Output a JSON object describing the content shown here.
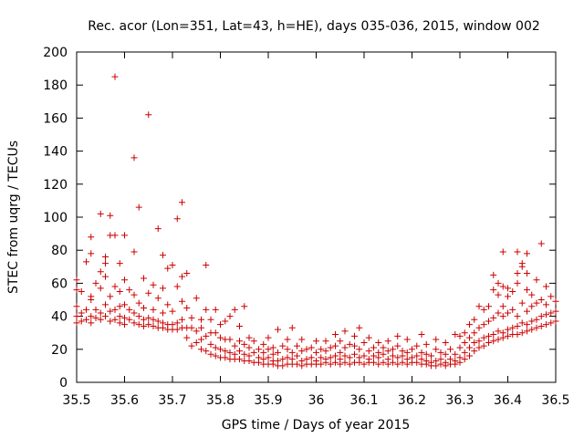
{
  "chart_data": {
    "type": "scatter",
    "title": "Rec. acor (Lon=351, Lat=43, h=HE), days 035-036, 2015, window 002",
    "xlabel": "GPS time / Days of year 2015",
    "ylabel": "STEC from uqrg / TECUs",
    "xlim": [
      35.5,
      36.5
    ],
    "ylim": [
      0,
      200
    ],
    "xticks": [
      "35.5",
      "35.6",
      "35.7",
      "35.8",
      "35.9",
      "36",
      "36.1",
      "36.2",
      "36.3",
      "36.4",
      "36.5"
    ],
    "yticks": [
      "0",
      "20",
      "40",
      "60",
      "80",
      "100",
      "120",
      "140",
      "160",
      "180",
      "200"
    ],
    "marker": "+",
    "color": "#cc0000",
    "grid": false,
    "points": [
      [
        35.5,
        36
      ],
      [
        35.5,
        40
      ],
      [
        35.5,
        46
      ],
      [
        35.5,
        56
      ],
      [
        35.5,
        62
      ],
      [
        35.51,
        37
      ],
      [
        35.51,
        42
      ],
      [
        35.51,
        55
      ],
      [
        35.52,
        38
      ],
      [
        35.52,
        44
      ],
      [
        35.52,
        73
      ],
      [
        35.53,
        36
      ],
      [
        35.53,
        40
      ],
      [
        35.53,
        50
      ],
      [
        35.53,
        52
      ],
      [
        35.53,
        78
      ],
      [
        35.53,
        88
      ],
      [
        35.54,
        39
      ],
      [
        35.54,
        44
      ],
      [
        35.54,
        60
      ],
      [
        35.55,
        38
      ],
      [
        35.55,
        42
      ],
      [
        35.55,
        57
      ],
      [
        35.55,
        67
      ],
      [
        35.55,
        102
      ],
      [
        35.56,
        40
      ],
      [
        35.56,
        47
      ],
      [
        35.56,
        64
      ],
      [
        35.56,
        72
      ],
      [
        35.56,
        76
      ],
      [
        35.57,
        37
      ],
      [
        35.57,
        43
      ],
      [
        35.57,
        52
      ],
      [
        35.57,
        89
      ],
      [
        35.57,
        101
      ],
      [
        35.58,
        38
      ],
      [
        35.58,
        44
      ],
      [
        35.58,
        58
      ],
      [
        35.58,
        89
      ],
      [
        35.58,
        185
      ],
      [
        35.59,
        36
      ],
      [
        35.59,
        40
      ],
      [
        35.59,
        46
      ],
      [
        35.59,
        55
      ],
      [
        35.59,
        72
      ],
      [
        35.6,
        35
      ],
      [
        35.6,
        39
      ],
      [
        35.6,
        47
      ],
      [
        35.6,
        62
      ],
      [
        35.6,
        89
      ],
      [
        35.61,
        38
      ],
      [
        35.61,
        44
      ],
      [
        35.61,
        56
      ],
      [
        35.62,
        36
      ],
      [
        35.62,
        42
      ],
      [
        35.62,
        53
      ],
      [
        35.62,
        79
      ],
      [
        35.62,
        136
      ],
      [
        35.63,
        35
      ],
      [
        35.63,
        40
      ],
      [
        35.63,
        48
      ],
      [
        35.63,
        106
      ],
      [
        35.64,
        34
      ],
      [
        35.64,
        38
      ],
      [
        35.64,
        45
      ],
      [
        35.64,
        63
      ],
      [
        35.65,
        35
      ],
      [
        35.65,
        39
      ],
      [
        35.65,
        54
      ],
      [
        35.65,
        162
      ],
      [
        35.66,
        34
      ],
      [
        35.66,
        38
      ],
      [
        35.66,
        44
      ],
      [
        35.66,
        59
      ],
      [
        35.67,
        33
      ],
      [
        35.67,
        37
      ],
      [
        35.67,
        51
      ],
      [
        35.67,
        93
      ],
      [
        35.68,
        33
      ],
      [
        35.68,
        36
      ],
      [
        35.68,
        42
      ],
      [
        35.68,
        57
      ],
      [
        35.68,
        77
      ],
      [
        35.69,
        32
      ],
      [
        35.69,
        35
      ],
      [
        35.69,
        47
      ],
      [
        35.69,
        69
      ],
      [
        35.7,
        32
      ],
      [
        35.7,
        35
      ],
      [
        35.7,
        43
      ],
      [
        35.7,
        71
      ],
      [
        35.71,
        32
      ],
      [
        35.71,
        36
      ],
      [
        35.71,
        58
      ],
      [
        35.71,
        99
      ],
      [
        35.72,
        33
      ],
      [
        35.72,
        38
      ],
      [
        35.72,
        49
      ],
      [
        35.72,
        64
      ],
      [
        35.72,
        109
      ],
      [
        35.73,
        27
      ],
      [
        35.73,
        33
      ],
      [
        35.73,
        45
      ],
      [
        35.73,
        66
      ],
      [
        35.74,
        22
      ],
      [
        35.74,
        33
      ],
      [
        35.74,
        39
      ],
      [
        35.75,
        24
      ],
      [
        35.75,
        31
      ],
      [
        35.75,
        51
      ],
      [
        35.76,
        20
      ],
      [
        35.76,
        26
      ],
      [
        35.76,
        33
      ],
      [
        35.76,
        38
      ],
      [
        35.77,
        19
      ],
      [
        35.77,
        28
      ],
      [
        35.77,
        44
      ],
      [
        35.77,
        71
      ],
      [
        35.78,
        17
      ],
      [
        35.78,
        23
      ],
      [
        35.78,
        30
      ],
      [
        35.78,
        38
      ],
      [
        35.79,
        16
      ],
      [
        35.79,
        21
      ],
      [
        35.79,
        30
      ],
      [
        35.79,
        44
      ],
      [
        35.8,
        15
      ],
      [
        35.8,
        20
      ],
      [
        35.8,
        27
      ],
      [
        35.8,
        35
      ],
      [
        35.81,
        15
      ],
      [
        35.81,
        19
      ],
      [
        35.81,
        26
      ],
      [
        35.81,
        37
      ],
      [
        35.82,
        14
      ],
      [
        35.82,
        18
      ],
      [
        35.82,
        26
      ],
      [
        35.82,
        40
      ],
      [
        35.83,
        14
      ],
      [
        35.83,
        17
      ],
      [
        35.83,
        22
      ],
      [
        35.83,
        44
      ],
      [
        35.84,
        14
      ],
      [
        35.84,
        19
      ],
      [
        35.84,
        25
      ],
      [
        35.84,
        34
      ],
      [
        35.85,
        13
      ],
      [
        35.85,
        17
      ],
      [
        35.85,
        23
      ],
      [
        35.85,
        46
      ],
      [
        35.86,
        13
      ],
      [
        35.86,
        16
      ],
      [
        35.86,
        21
      ],
      [
        35.86,
        27
      ],
      [
        35.87,
        12
      ],
      [
        35.87,
        18
      ],
      [
        35.87,
        25
      ],
      [
        35.88,
        12
      ],
      [
        35.88,
        15
      ],
      [
        35.88,
        20
      ],
      [
        35.89,
        11
      ],
      [
        35.89,
        14
      ],
      [
        35.89,
        18
      ],
      [
        35.89,
        23
      ],
      [
        35.9,
        11
      ],
      [
        35.9,
        15
      ],
      [
        35.9,
        20
      ],
      [
        35.9,
        27
      ],
      [
        35.91,
        11
      ],
      [
        35.91,
        13
      ],
      [
        35.91,
        17
      ],
      [
        35.91,
        21
      ],
      [
        35.92,
        10
      ],
      [
        35.92,
        13
      ],
      [
        35.92,
        18
      ],
      [
        35.92,
        32
      ],
      [
        35.93,
        10
      ],
      [
        35.93,
        14
      ],
      [
        35.93,
        22
      ],
      [
        35.94,
        11
      ],
      [
        35.94,
        15
      ],
      [
        35.94,
        20
      ],
      [
        35.94,
        26
      ],
      [
        35.95,
        11
      ],
      [
        35.95,
        14
      ],
      [
        35.95,
        18
      ],
      [
        35.95,
        33
      ],
      [
        35.96,
        11
      ],
      [
        35.96,
        16
      ],
      [
        35.96,
        22
      ],
      [
        35.97,
        10
      ],
      [
        35.97,
        13
      ],
      [
        35.97,
        19
      ],
      [
        35.97,
        26
      ],
      [
        35.98,
        11
      ],
      [
        35.98,
        14
      ],
      [
        35.98,
        20
      ],
      [
        35.99,
        11
      ],
      [
        35.99,
        15
      ],
      [
        35.99,
        21
      ],
      [
        36.0,
        11
      ],
      [
        36.0,
        13
      ],
      [
        36.0,
        18
      ],
      [
        36.0,
        25
      ],
      [
        36.01,
        11
      ],
      [
        36.01,
        15
      ],
      [
        36.01,
        20
      ],
      [
        36.02,
        12
      ],
      [
        36.02,
        14
      ],
      [
        36.02,
        19
      ],
      [
        36.02,
        25
      ],
      [
        36.03,
        11
      ],
      [
        36.03,
        15
      ],
      [
        36.03,
        21
      ],
      [
        36.04,
        12
      ],
      [
        36.04,
        16
      ],
      [
        36.04,
        22
      ],
      [
        36.04,
        29
      ],
      [
        36.05,
        11
      ],
      [
        36.05,
        14
      ],
      [
        36.05,
        18
      ],
      [
        36.05,
        25
      ],
      [
        36.06,
        12
      ],
      [
        36.06,
        16
      ],
      [
        36.06,
        21
      ],
      [
        36.06,
        31
      ],
      [
        36.07,
        11
      ],
      [
        36.07,
        15
      ],
      [
        36.07,
        23
      ],
      [
        36.08,
        12
      ],
      [
        36.08,
        17
      ],
      [
        36.08,
        22
      ],
      [
        36.08,
        28
      ],
      [
        36.09,
        12
      ],
      [
        36.09,
        15
      ],
      [
        36.09,
        20
      ],
      [
        36.09,
        33
      ],
      [
        36.1,
        11
      ],
      [
        36.1,
        16
      ],
      [
        36.1,
        24
      ],
      [
        36.11,
        12
      ],
      [
        36.11,
        14
      ],
      [
        36.11,
        19
      ],
      [
        36.11,
        27
      ],
      [
        36.12,
        12
      ],
      [
        36.12,
        16
      ],
      [
        36.12,
        21
      ],
      [
        36.13,
        11
      ],
      [
        36.13,
        15
      ],
      [
        36.13,
        18
      ],
      [
        36.13,
        24
      ],
      [
        36.14,
        12
      ],
      [
        36.14,
        17
      ],
      [
        36.14,
        21
      ],
      [
        36.15,
        11
      ],
      [
        36.15,
        14
      ],
      [
        36.15,
        19
      ],
      [
        36.15,
        25
      ],
      [
        36.16,
        12
      ],
      [
        36.16,
        16
      ],
      [
        36.16,
        20
      ],
      [
        36.17,
        11
      ],
      [
        36.17,
        15
      ],
      [
        36.17,
        22
      ],
      [
        36.17,
        28
      ],
      [
        36.18,
        12
      ],
      [
        36.18,
        16
      ],
      [
        36.18,
        19
      ],
      [
        36.19,
        11
      ],
      [
        36.19,
        14
      ],
      [
        36.19,
        18
      ],
      [
        36.19,
        26
      ],
      [
        36.2,
        12
      ],
      [
        36.2,
        15
      ],
      [
        36.2,
        20
      ],
      [
        36.21,
        12
      ],
      [
        36.21,
        16
      ],
      [
        36.21,
        22
      ],
      [
        36.22,
        11
      ],
      [
        36.22,
        14
      ],
      [
        36.22,
        18
      ],
      [
        36.22,
        29
      ],
      [
        36.23,
        11
      ],
      [
        36.23,
        13
      ],
      [
        36.23,
        17
      ],
      [
        36.23,
        23
      ],
      [
        36.24,
        10
      ],
      [
        36.24,
        12
      ],
      [
        36.24,
        16
      ],
      [
        36.25,
        10
      ],
      [
        36.25,
        13
      ],
      [
        36.25,
        20
      ],
      [
        36.25,
        26
      ],
      [
        36.26,
        11
      ],
      [
        36.26,
        14
      ],
      [
        36.26,
        18
      ],
      [
        36.27,
        10
      ],
      [
        36.27,
        12
      ],
      [
        36.27,
        17
      ],
      [
        36.27,
        24
      ],
      [
        36.28,
        11
      ],
      [
        36.28,
        14
      ],
      [
        36.28,
        20
      ],
      [
        36.29,
        11
      ],
      [
        36.29,
        13
      ],
      [
        36.29,
        17
      ],
      [
        36.29,
        29
      ],
      [
        36.3,
        12
      ],
      [
        36.3,
        15
      ],
      [
        36.3,
        21
      ],
      [
        36.3,
        28
      ],
      [
        36.31,
        14
      ],
      [
        36.31,
        18
      ],
      [
        36.31,
        24
      ],
      [
        36.31,
        30
      ],
      [
        36.32,
        16
      ],
      [
        36.32,
        21
      ],
      [
        36.32,
        27
      ],
      [
        36.32,
        35
      ],
      [
        36.33,
        19
      ],
      [
        36.33,
        24
      ],
      [
        36.33,
        30
      ],
      [
        36.33,
        38
      ],
      [
        36.34,
        21
      ],
      [
        36.34,
        25
      ],
      [
        36.34,
        33
      ],
      [
        36.34,
        46
      ],
      [
        36.35,
        22
      ],
      [
        36.35,
        27
      ],
      [
        36.35,
        35
      ],
      [
        36.35,
        44
      ],
      [
        36.36,
        24
      ],
      [
        36.36,
        28
      ],
      [
        36.36,
        37
      ],
      [
        36.36,
        46
      ],
      [
        36.37,
        25
      ],
      [
        36.37,
        29
      ],
      [
        36.37,
        39
      ],
      [
        36.37,
        56
      ],
      [
        36.37,
        65
      ],
      [
        36.38,
        26
      ],
      [
        36.38,
        31
      ],
      [
        36.38,
        42
      ],
      [
        36.38,
        53
      ],
      [
        36.38,
        60
      ],
      [
        36.39,
        27
      ],
      [
        36.39,
        30
      ],
      [
        36.39,
        40
      ],
      [
        36.39,
        46
      ],
      [
        36.39,
        58
      ],
      [
        36.39,
        79
      ],
      [
        36.4,
        28
      ],
      [
        36.4,
        32
      ],
      [
        36.4,
        42
      ],
      [
        36.4,
        52
      ],
      [
        36.4,
        57
      ],
      [
        36.41,
        29
      ],
      [
        36.41,
        33
      ],
      [
        36.41,
        44
      ],
      [
        36.41,
        55
      ],
      [
        36.42,
        29
      ],
      [
        36.42,
        34
      ],
      [
        36.42,
        40
      ],
      [
        36.42,
        60
      ],
      [
        36.42,
        66
      ],
      [
        36.42,
        79
      ],
      [
        36.43,
        30
      ],
      [
        36.43,
        36
      ],
      [
        36.43,
        48
      ],
      [
        36.43,
        70
      ],
      [
        36.43,
        72
      ],
      [
        36.44,
        31
      ],
      [
        36.44,
        35
      ],
      [
        36.44,
        43
      ],
      [
        36.44,
        56
      ],
      [
        36.44,
        66
      ],
      [
        36.44,
        78
      ],
      [
        36.45,
        32
      ],
      [
        36.45,
        37
      ],
      [
        36.45,
        46
      ],
      [
        36.45,
        53
      ],
      [
        36.46,
        33
      ],
      [
        36.46,
        38
      ],
      [
        36.46,
        48
      ],
      [
        36.46,
        62
      ],
      [
        36.47,
        34
      ],
      [
        36.47,
        40
      ],
      [
        36.47,
        50
      ],
      [
        36.47,
        84
      ],
      [
        36.48,
        35
      ],
      [
        36.48,
        41
      ],
      [
        36.48,
        47
      ],
      [
        36.48,
        58
      ],
      [
        36.49,
        36
      ],
      [
        36.49,
        42
      ],
      [
        36.49,
        52
      ],
      [
        36.5,
        37
      ],
      [
        36.5,
        43
      ],
      [
        36.5,
        49
      ]
    ]
  }
}
